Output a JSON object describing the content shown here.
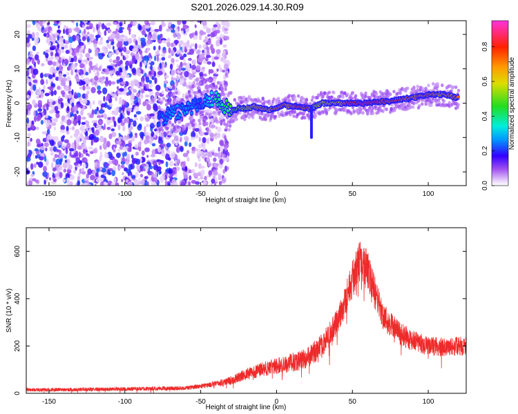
{
  "title": "S201.2026.029.14.30.R09",
  "chart_data": [
    {
      "type": "heatmap",
      "xlabel": "Height of straight line (km)",
      "ylabel": "Frequency (Hz)",
      "xlim": [
        -165,
        125
      ],
      "ylim": [
        -24,
        24
      ],
      "x_ticks": [
        -150,
        -100,
        -50,
        0,
        50,
        100
      ],
      "y_ticks": [
        -20,
        -10,
        0,
        10,
        20
      ],
      "colorbar": {
        "label": "Normalized spectral amplitude",
        "range": [
          0.0,
          0.95
        ],
        "ticks": [
          0.0,
          0.2,
          0.4,
          0.6,
          0.8
        ],
        "tick_labels": [
          "0.0",
          "0.2",
          "0.4",
          "0.6",
          "0.8"
        ]
      },
      "ridge": {
        "description": "dominant spectral line vs height",
        "x": [
          -78,
          -70,
          -60,
          -50,
          -45,
          -40,
          -35,
          -30,
          -25,
          -20,
          -15,
          -10,
          -5,
          0,
          5,
          10,
          15,
          20,
          23,
          25,
          30,
          40,
          50,
          60,
          70,
          75,
          80,
          90,
          100,
          110,
          120
        ],
        "y": [
          -4.5,
          -3.5,
          -1.5,
          0,
          1,
          1.5,
          -0.5,
          -2.5,
          -1.5,
          -1.5,
          -1,
          -1.5,
          -2,
          -1.5,
          -0.5,
          -1,
          -1,
          -1.5,
          -1.5,
          -1,
          0,
          0,
          0,
          0,
          0.5,
          0.5,
          1,
          1.5,
          2.5,
          2.5,
          1.5
        ],
        "amplitude": [
          0.25,
          0.3,
          0.3,
          0.25,
          0.35,
          0.45,
          0.45,
          0.55,
          0.6,
          0.65,
          0.7,
          0.75,
          0.75,
          0.8,
          0.8,
          0.8,
          0.85,
          0.85,
          0.8,
          0.6,
          0.65,
          0.7,
          0.95,
          0.95,
          0.9,
          0.85,
          0.85,
          0.8,
          0.8,
          0.75,
          0.8
        ]
      },
      "noise_region_x": [
        -165,
        -40
      ],
      "spike": {
        "x": 23,
        "y_min": -10,
        "y_max": -1
      }
    },
    {
      "type": "line",
      "xlabel": "Height of straight line (km)",
      "ylabel": "SNR (10 * v/v)",
      "xlim": [
        -165,
        125
      ],
      "ylim": [
        0,
        700
      ],
      "x_ticks": [
        -150,
        -100,
        -50,
        0,
        50,
        100
      ],
      "y_ticks": [
        0,
        200,
        400,
        600
      ],
      "series": [
        {
          "name": "SNR",
          "color": "#ee2a2a",
          "envelope_x": [
            -165,
            -150,
            -100,
            -60,
            -50,
            -40,
            -30,
            -20,
            -10,
            0,
            10,
            20,
            30,
            40,
            45,
            50,
            55,
            60,
            65,
            70,
            80,
            90,
            100,
            110,
            125
          ],
          "envelope_y": [
            15,
            15,
            18,
            22,
            30,
            40,
            55,
            80,
            100,
            115,
            130,
            150,
            200,
            300,
            390,
            480,
            560,
            520,
            420,
            330,
            260,
            220,
            200,
            195,
            200
          ],
          "noise_amplitude": [
            8,
            8,
            8,
            9,
            10,
            12,
            18,
            25,
            30,
            35,
            40,
            45,
            50,
            60,
            70,
            80,
            90,
            85,
            70,
            60,
            50,
            45,
            40,
            40,
            40
          ]
        }
      ]
    }
  ]
}
